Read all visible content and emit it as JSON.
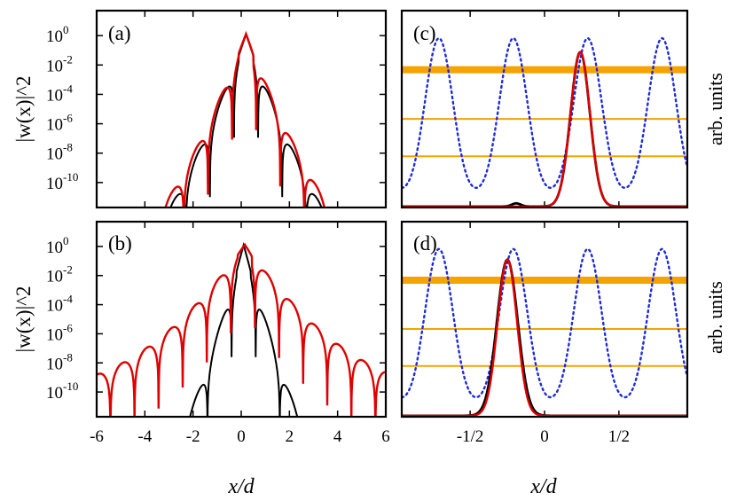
{
  "chart_data": [
    {
      "panel": "(a)",
      "type": "line",
      "yscale": "log",
      "ylabel": "|w(x)|^2",
      "xlim": [
        -6,
        6
      ],
      "ylim_log10": [
        -11.7,
        1.7
      ],
      "yticks_log10": [
        0,
        -2,
        -4,
        -6,
        -8,
        -10
      ],
      "yticklabels": [
        "10",
        "10",
        "10",
        "10",
        "10",
        "10"
      ],
      "yticksup": [
        "0",
        "-2",
        "-4",
        "-6",
        "-8",
        "-10"
      ],
      "series": [
        {
          "color": "#000000",
          "envelope": {
            "center": 0.2,
            "peak_log10": 0.08,
            "slope_left": 4.6,
            "slope_right": 4.6
          }
        },
        {
          "color": "#e00000",
          "envelope": {
            "center": 0.2,
            "peak_log10": 0.12,
            "slope_left": 4.3,
            "slope_right": 4.3
          }
        }
      ]
    },
    {
      "panel": "(b)",
      "type": "line",
      "yscale": "log",
      "ylabel": "|w(x)|^2",
      "xlim": [
        -6,
        6
      ],
      "ylim_log10": [
        -11.7,
        1.7
      ],
      "xticks": [
        -6,
        -4,
        -2,
        0,
        2,
        4,
        6
      ],
      "xticklabels": [
        "-6",
        "-4",
        "-2",
        "0",
        "2",
        "4",
        "6"
      ],
      "xlabel": "x/d",
      "yticks_log10": [
        0,
        -2,
        -4,
        -6,
        -8,
        -10
      ],
      "yticklabels": [
        "10",
        "10",
        "10",
        "10",
        "10",
        "10"
      ],
      "yticksup": [
        "0",
        "-2",
        "-4",
        "-6",
        "-8",
        "-10"
      ],
      "series": [
        {
          "color": "#000000",
          "envelope": {
            "center": 0.1,
            "peak_log10": 0.1,
            "slope_left": 6.0,
            "slope_right": 6.0
          }
        },
        {
          "color": "#e00000",
          "envelope": {
            "center": 0.15,
            "peak_log10": 0.12,
            "slope_left": 2.3,
            "slope_right": 2.3
          }
        }
      ]
    },
    {
      "panel": "(c)",
      "type": "line",
      "ylabel": "arb. units",
      "xlim": [
        -0.96,
        0.96
      ],
      "potential": {
        "color": "#1f2bd6",
        "period": 0.5,
        "phase": -0.21
      },
      "levels": [
        {
          "y": 0.7,
          "width": 8
        },
        {
          "y": 0.45,
          "width": 2
        },
        {
          "y": 0.26,
          "width": 2
        }
      ],
      "levels_color": "#f5a300",
      "series": [
        {
          "color": "#000000",
          "center": 0.24,
          "peak": 0.98,
          "sigma": 0.065,
          "bump": {
            "center": -0.19,
            "amp": 0.02
          }
        },
        {
          "color": "#e00000",
          "center": 0.24,
          "peak": 0.98,
          "sigma": 0.065
        }
      ]
    },
    {
      "panel": "(d)",
      "type": "line",
      "ylabel": "arb. units",
      "xlim": [
        -0.96,
        0.96
      ],
      "xticks": [
        -0.5,
        0,
        0.5
      ],
      "xticklabels": [
        "-1/2",
        "0",
        "1/2"
      ],
      "xlabel": "x/d",
      "potential": {
        "color": "#1f2bd6",
        "period": 0.5,
        "phase": -0.21
      },
      "levels": [
        {
          "y": 0.7,
          "width": 8
        },
        {
          "y": 0.45,
          "width": 2
        },
        {
          "y": 0.26,
          "width": 2
        }
      ],
      "levels_color": "#f5a300",
      "series": [
        {
          "color": "#000000",
          "center": -0.25,
          "peak": 1.0,
          "sigma": 0.07
        },
        {
          "color": "#e00000",
          "center": -0.25,
          "peak": 1.0,
          "sigma": 0.065
        }
      ]
    }
  ]
}
